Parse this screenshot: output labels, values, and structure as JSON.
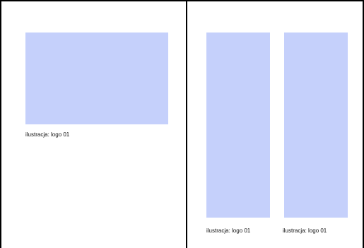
{
  "left_page": {
    "figure_caption": "ilustracja: logo 01"
  },
  "right_page": {
    "figures": [
      {
        "caption": "ilustracja: logo 01"
      },
      {
        "caption": "ilustracja: logo 01"
      }
    ]
  },
  "colors": {
    "placeholder_fill": "#c5d0fb",
    "border": "#000000",
    "background": "#ffffff"
  }
}
